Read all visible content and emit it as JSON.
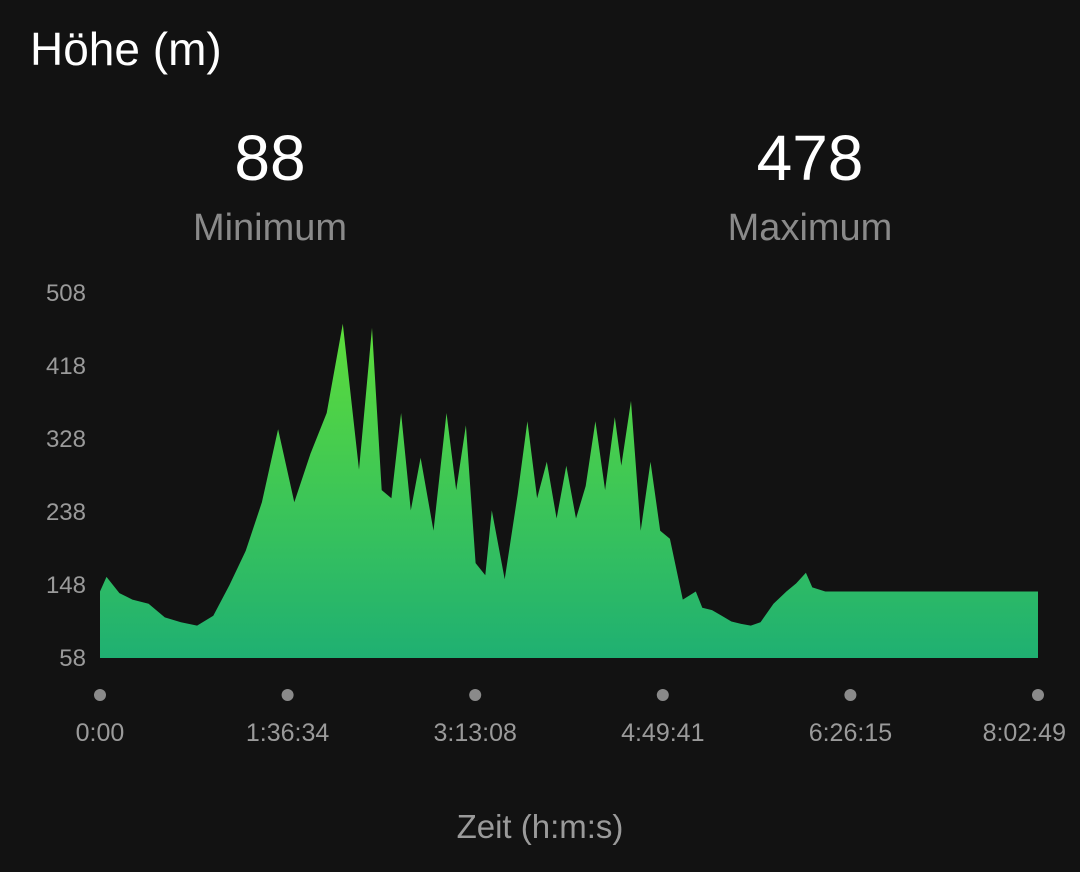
{
  "page": {
    "title": "Höhe (m)"
  },
  "stats": {
    "min_value": "88",
    "min_label": "Minimum",
    "max_value": "478",
    "max_label": "Maximum"
  },
  "colors": {
    "background": "#121212",
    "fill_top": "#5ddd3a",
    "fill_bottom": "#1fb072",
    "axis_text": "#9a9a9a",
    "tick_dot": "#8a8a8a"
  },
  "chart_data": {
    "type": "area",
    "title": "Höhe (m)",
    "xlabel": "Zeit (h:m:s)",
    "ylabel": "",
    "grid": false,
    "legend": "none",
    "ylim": [
      58,
      508
    ],
    "y_ticks": [
      "508",
      "418",
      "328",
      "238",
      "148",
      "58"
    ],
    "x_ticks": [
      "0:00",
      "1:36:34",
      "3:13:08",
      "4:49:41",
      "6:26:15",
      "8:02:49"
    ],
    "xlim_seconds": [
      0,
      28969
    ],
    "series": [
      {
        "x_seconds": [
          0,
          200,
          600,
          1000,
          1500,
          2000,
          2500,
          3000,
          3500,
          4000,
          4500,
          5000,
          5500,
          6000,
          6500,
          7000,
          7500,
          8000,
          8400,
          8700,
          9000,
          9300,
          9600,
          9900,
          10300,
          10700,
          11000,
          11300,
          11600,
          11900,
          12100,
          12500,
          12900,
          13200,
          13500,
          13800,
          14100,
          14400,
          14700,
          15000,
          15300,
          15600,
          15900,
          16100,
          16400,
          16700,
          17000,
          17300,
          17600,
          18000,
          18400,
          18600,
          18900,
          19200,
          19500,
          19800,
          20100,
          20400,
          20800,
          21200,
          21500,
          21800,
          22000,
          22400,
          22800,
          23100,
          23400,
          23700,
          24000,
          24300,
          24600,
          25000,
          25500,
          26000,
          26500,
          27000,
          27500,
          28000,
          28500,
          28800,
          28969
        ],
        "y_meters": [
          140,
          158,
          138,
          130,
          125,
          108,
          102,
          98,
          110,
          148,
          190,
          250,
          340,
          250,
          310,
          360,
          470,
          290,
          465,
          265,
          255,
          360,
          240,
          305,
          215,
          360,
          265,
          345,
          175,
          160,
          240,
          155,
          260,
          350,
          255,
          300,
          230,
          295,
          230,
          270,
          350,
          265,
          355,
          295,
          375,
          215,
          300,
          215,
          205,
          130,
          140,
          120,
          117,
          110,
          103,
          100,
          98,
          102,
          125,
          140,
          150,
          163,
          145,
          140,
          140,
          140,
          140,
          140,
          140,
          140,
          140,
          140,
          140,
          140,
          140,
          140,
          140,
          140,
          140,
          140,
          140
        ]
      }
    ]
  }
}
